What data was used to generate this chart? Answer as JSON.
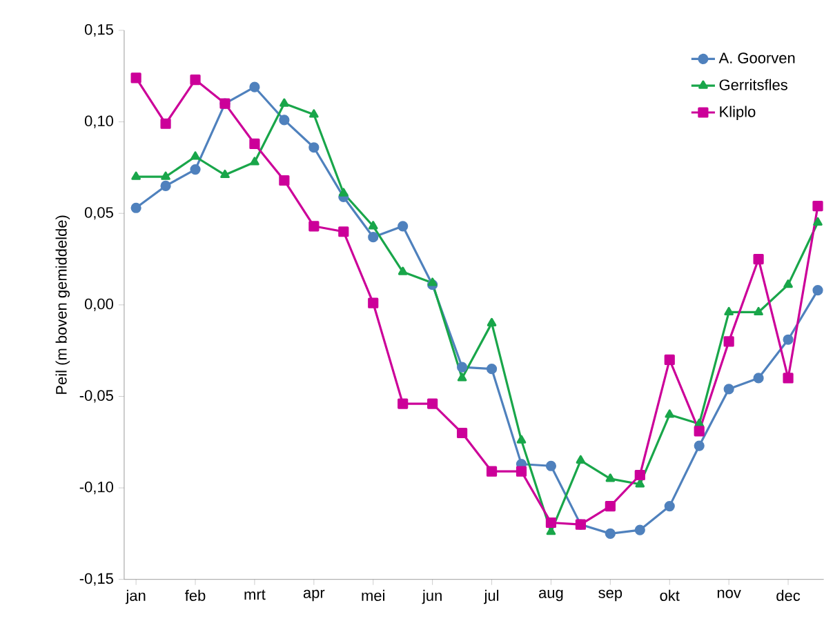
{
  "chart_data": {
    "type": "line",
    "ylabel": "Peil (m boven gemiddelde)",
    "categories": [
      "jan",
      null,
      "feb",
      null,
      "mrt",
      null,
      "apr",
      null,
      "mei",
      null,
      "jun",
      null,
      "jul",
      null,
      "aug",
      null,
      "sep",
      null,
      "okt",
      null,
      "nov",
      null,
      "dec",
      null
    ],
    "ylim": [
      -0.15,
      0.15
    ],
    "yticks": [
      {
        "value": -0.15,
        "label": "-0,15"
      },
      {
        "value": -0.1,
        "label": "-0,10"
      },
      {
        "value": -0.05,
        "label": "-0,05"
      },
      {
        "value": 0,
        "label": "0,00"
      },
      {
        "value": 0.05,
        "label": "0,05"
      },
      {
        "value": 0.1,
        "label": "0,10"
      },
      {
        "value": 0.15,
        "label": "0,15"
      }
    ],
    "grid": false,
    "legend": "top right",
    "line_style": "solid",
    "series": [
      {
        "name": "A. Goorven",
        "color": "#4f81bd",
        "marker": "circle",
        "values": [
          0.053,
          0.065,
          0.074,
          0.11,
          0.119,
          0.101,
          0.086,
          0.059,
          0.037,
          0.043,
          0.011,
          -0.034,
          -0.035,
          -0.087,
          -0.088,
          -0.12,
          -0.125,
          -0.123,
          -0.11,
          -0.077,
          -0.046,
          -0.04,
          -0.019,
          0.008
        ]
      },
      {
        "name": "Gerritsfles",
        "color": "#19a64a",
        "marker": "triangle",
        "values": [
          0.07,
          0.07,
          0.081,
          0.071,
          0.078,
          0.11,
          0.104,
          0.061,
          0.043,
          0.018,
          0.012,
          -0.04,
          -0.01,
          -0.074,
          -0.124,
          -0.085,
          -0.095,
          -0.098,
          -0.06,
          -0.065,
          -0.004,
          -0.004,
          0.011,
          0.045
        ]
      },
      {
        "name": "Kliplo",
        "color": "#cc0099",
        "marker": "square",
        "values": [
          0.124,
          0.099,
          0.123,
          0.11,
          0.088,
          0.068,
          0.043,
          0.04,
          0.001,
          -0.054,
          -0.054,
          -0.07,
          -0.091,
          -0.091,
          -0.119,
          -0.12,
          -0.11,
          -0.093,
          -0.03,
          -0.069,
          -0.02,
          0.025,
          -0.04,
          0.054
        ]
      }
    ]
  }
}
